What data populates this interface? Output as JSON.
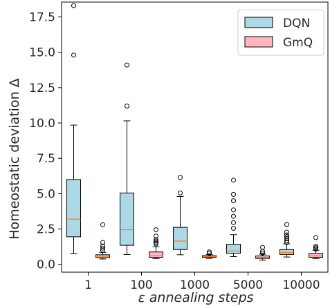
{
  "chart_data": {
    "type": "box",
    "title": "",
    "xlabel": "ε annealing steps",
    "ylabel": "Homeostatic deviation Δ",
    "ylim": [
      -0.55,
      18.55
    ],
    "yticks": [
      "0.0",
      "2.5",
      "5.0",
      "7.5",
      "10.0",
      "12.5",
      "15.0",
      "17.5"
    ],
    "categories": [
      "1",
      "100",
      "1000",
      "5000",
      "10000"
    ],
    "grid": false,
    "legend_position": "top-right",
    "series": [
      {
        "name": "DQN",
        "color": "#add8e6",
        "boxes": [
          {
            "whislo": 0.75,
            "q1": 1.95,
            "med": 3.2,
            "q3": 6.0,
            "whishi": 9.85,
            "fliers": [
              14.8,
              18.3
            ]
          },
          {
            "whislo": 0.7,
            "q1": 1.35,
            "med": 2.45,
            "q3": 5.05,
            "whishi": 10.15,
            "fliers": [
              11.2,
              14.1
            ]
          },
          {
            "whislo": 0.68,
            "q1": 1.05,
            "med": 1.65,
            "q3": 2.62,
            "whishi": 4.8,
            "fliers": [
              5.05,
              6.15
            ]
          },
          {
            "whislo": 0.55,
            "q1": 0.78,
            "med": 0.95,
            "q3": 1.42,
            "whishi": 2.1,
            "fliers": [
              2.55,
              2.95,
              3.4,
              3.85,
              4.5,
              4.95,
              5.95
            ]
          },
          {
            "whislo": 0.52,
            "q1": 0.7,
            "med": 0.85,
            "q3": 1.05,
            "whishi": 1.45,
            "fliers": [
              1.55,
              1.68,
              1.82,
              1.95,
              2.08,
              2.28,
              2.82
            ]
          }
        ]
      },
      {
        "name": "GmQ",
        "color": "#ffb6c1",
        "boxes": [
          {
            "whislo": 0.38,
            "q1": 0.48,
            "med": 0.57,
            "q3": 0.68,
            "whishi": 0.85,
            "fliers": [
              1.0,
              1.15,
              1.3,
              1.55,
              2.8
            ]
          },
          {
            "whislo": 0.4,
            "q1": 0.5,
            "med": 0.62,
            "q3": 0.88,
            "whishi": 1.25,
            "fliers": [
              1.45,
              1.55,
              1.65,
              1.75,
              2.0,
              2.45
            ]
          },
          {
            "whislo": 0.42,
            "q1": 0.5,
            "med": 0.55,
            "q3": 0.62,
            "whishi": 0.7,
            "fliers": [
              0.78,
              0.88
            ]
          },
          {
            "whislo": 0.3,
            "q1": 0.42,
            "med": 0.5,
            "q3": 0.6,
            "whishi": 0.72,
            "fliers": [
              0.8,
              0.92,
              1.2
            ]
          },
          {
            "whislo": 0.4,
            "q1": 0.5,
            "med": 0.6,
            "q3": 0.78,
            "whishi": 1.0,
            "fliers": [
              1.08,
              1.18,
              1.28,
              1.9
            ]
          }
        ]
      }
    ],
    "median_color": "#ff7f0e"
  }
}
